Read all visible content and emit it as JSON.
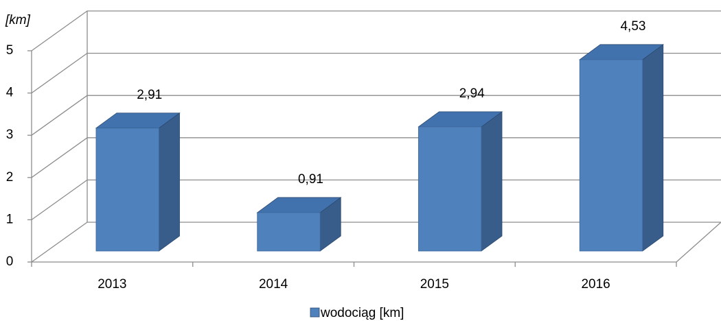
{
  "chart_data": {
    "type": "bar3d",
    "y_label": "[km]",
    "categories": [
      "2013",
      "2014",
      "2015",
      "2016"
    ],
    "series": [
      {
        "name": "wodociąg [km]",
        "color": "#4f81bd",
        "values": [
          2.91,
          0.91,
          2.94,
          4.53
        ],
        "value_labels": [
          "2,91",
          "0,91",
          "2,94",
          "4,53"
        ]
      }
    ],
    "ylim": [
      0,
      5
    ],
    "yticks": [
      0,
      1,
      2,
      3,
      4,
      5
    ],
    "grid": true,
    "legend": "bottom"
  }
}
